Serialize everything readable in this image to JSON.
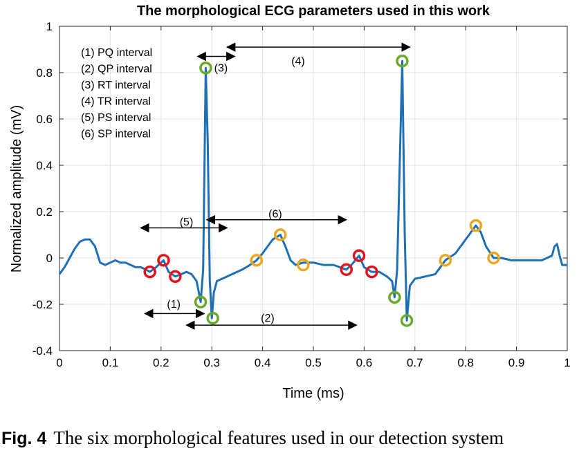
{
  "chart_data": {
    "type": "line",
    "title": "The morphological ECG parameters used in this work",
    "xlabel": "Time (ms)",
    "ylabel": "Normalized amplitude (mV)",
    "xlim": [
      0,
      1
    ],
    "ylim": [
      -0.4,
      1
    ],
    "xticks": [
      0,
      0.1,
      0.2,
      0.3,
      0.4,
      0.5,
      0.6,
      0.7,
      0.8,
      0.9,
      1
    ],
    "xtick_labels": [
      "0",
      "0.1",
      "0.2",
      "0.3",
      "0.4",
      "0.5",
      "0.6",
      "0.7",
      "0.8",
      "0.9",
      "1"
    ],
    "yticks": [
      -0.4,
      -0.2,
      0,
      0.2,
      0.4,
      0.6,
      0.8,
      1
    ],
    "ytick_labels": [
      "-0.4",
      "-0.2",
      "0",
      "0.2",
      "0.4",
      "0.6",
      "0.8",
      "1"
    ],
    "grid": true,
    "line_color": "#1f6fb5",
    "series": [
      {
        "x": [
          0,
          0.01,
          0.02,
          0.03,
          0.04,
          0.05,
          0.06,
          0.07,
          0.08,
          0.09,
          0.1,
          0.11,
          0.12,
          0.13,
          0.14,
          0.15,
          0.16,
          0.17,
          0.178,
          0.19,
          0.205,
          0.215,
          0.228,
          0.24,
          0.25,
          0.26,
          0.27,
          0.278,
          0.283,
          0.288,
          0.292,
          0.296,
          0.3,
          0.304,
          0.31,
          0.32,
          0.33,
          0.34,
          0.36,
          0.375,
          0.388,
          0.4,
          0.41,
          0.42,
          0.435,
          0.445,
          0.455,
          0.465,
          0.48,
          0.5,
          0.52,
          0.54,
          0.565,
          0.575,
          0.59,
          0.6,
          0.615,
          0.63,
          0.645,
          0.655,
          0.66,
          0.665,
          0.67,
          0.675,
          0.68,
          0.684,
          0.69,
          0.7,
          0.72,
          0.74,
          0.76,
          0.78,
          0.8,
          0.82,
          0.83,
          0.84,
          0.855,
          0.87,
          0.89,
          0.91,
          0.93,
          0.95,
          0.97,
          0.975,
          0.98,
          0.985,
          0.99,
          1
        ],
        "y": [
          -0.07,
          -0.04,
          0.0,
          0.04,
          0.07,
          0.08,
          0.08,
          0.05,
          -0.02,
          -0.03,
          -0.02,
          -0.01,
          -0.02,
          -0.02,
          -0.03,
          -0.04,
          -0.04,
          -0.05,
          -0.06,
          -0.04,
          -0.01,
          -0.06,
          -0.08,
          -0.07,
          -0.06,
          -0.07,
          -0.1,
          -0.19,
          -0.05,
          0.82,
          0.5,
          -0.1,
          -0.26,
          -0.15,
          -0.1,
          -0.09,
          -0.08,
          -0.07,
          -0.05,
          -0.03,
          -0.01,
          0.02,
          0.05,
          0.08,
          0.1,
          0.05,
          -0.01,
          -0.03,
          -0.02,
          -0.02,
          -0.03,
          -0.03,
          -0.05,
          -0.03,
          0.01,
          -0.04,
          -0.06,
          -0.06,
          -0.08,
          -0.1,
          -0.17,
          -0.05,
          0.4,
          0.85,
          0.1,
          -0.27,
          -0.12,
          -0.09,
          -0.08,
          -0.07,
          -0.01,
          0.02,
          0.08,
          0.14,
          0.11,
          0.05,
          0.0,
          0.0,
          -0.01,
          -0.01,
          -0.01,
          -0.01,
          0.01,
          0.05,
          0.06,
          0.01,
          -0.03,
          -0.03
        ]
      }
    ],
    "markers": [
      {
        "x": 0.178,
        "y": -0.06,
        "color": "#e0141e"
      },
      {
        "x": 0.205,
        "y": -0.01,
        "color": "#e0141e"
      },
      {
        "x": 0.228,
        "y": -0.08,
        "color": "#e0141e"
      },
      {
        "x": 0.565,
        "y": -0.05,
        "color": "#e0141e"
      },
      {
        "x": 0.59,
        "y": 0.01,
        "color": "#e0141e"
      },
      {
        "x": 0.615,
        "y": -0.06,
        "color": "#e0141e"
      },
      {
        "x": 0.278,
        "y": -0.19,
        "color": "#6aaa2a"
      },
      {
        "x": 0.288,
        "y": 0.82,
        "color": "#6aaa2a"
      },
      {
        "x": 0.302,
        "y": -0.26,
        "color": "#6aaa2a"
      },
      {
        "x": 0.66,
        "y": -0.17,
        "color": "#6aaa2a"
      },
      {
        "x": 0.675,
        "y": 0.85,
        "color": "#6aaa2a"
      },
      {
        "x": 0.684,
        "y": -0.27,
        "color": "#6aaa2a"
      },
      {
        "x": 0.388,
        "y": -0.01,
        "color": "#e8a820"
      },
      {
        "x": 0.435,
        "y": 0.1,
        "color": "#e8a820"
      },
      {
        "x": 0.48,
        "y": -0.03,
        "color": "#e8a820"
      },
      {
        "x": 0.76,
        "y": -0.01,
        "color": "#e8a820"
      },
      {
        "x": 0.82,
        "y": 0.14,
        "color": "#e8a820"
      },
      {
        "x": 0.855,
        "y": 0.0,
        "color": "#e8a820"
      }
    ],
    "legend_text": [
      "(1) PQ interval",
      "(2) QP interval",
      "(3) RT interval",
      "(4) TR interval",
      "(5) PS interval",
      "(6) SP interval"
    ],
    "intervals": [
      {
        "label": "(1)",
        "x1": 0.168,
        "x2": 0.285,
        "y": -0.24,
        "label_x": 0.225,
        "label_y": -0.2
      },
      {
        "label": "(2)",
        "x1": 0.25,
        "x2": 0.585,
        "y": -0.29,
        "label_x": 0.41,
        "label_y": -0.26
      },
      {
        "label": "(3)",
        "x1": 0.272,
        "x2": 0.345,
        "y": 0.87,
        "label_x": 0.318,
        "label_y": 0.82
      },
      {
        "label": "(4)",
        "x1": 0.33,
        "x2": 0.69,
        "y": 0.91,
        "label_x": 0.47,
        "label_y": 0.85
      },
      {
        "label": "(5)",
        "x1": 0.16,
        "x2": 0.33,
        "y": 0.13,
        "label_x": 0.25,
        "label_y": 0.155
      },
      {
        "label": "(6)",
        "x1": 0.29,
        "x2": 0.565,
        "y": 0.165,
        "label_x": 0.425,
        "label_y": 0.19
      }
    ]
  },
  "caption": {
    "label": "Fig. 4",
    "text": "The six morphological features used in our detection system"
  }
}
